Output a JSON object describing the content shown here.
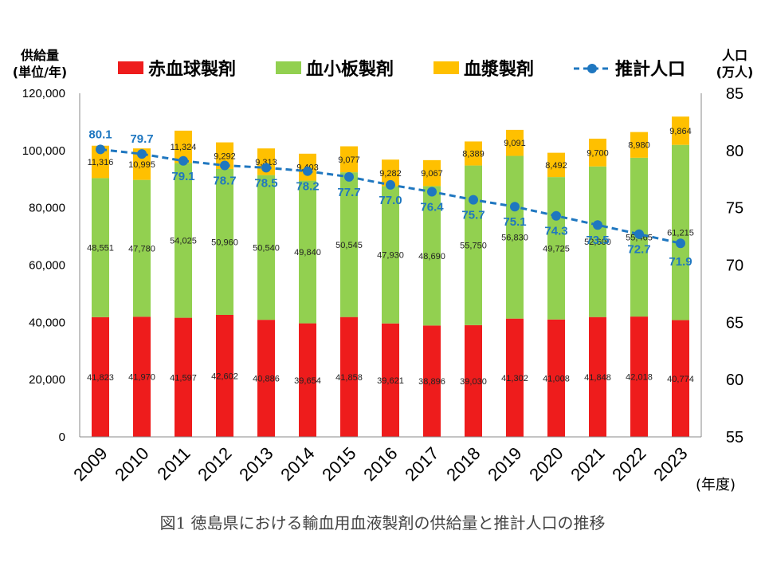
{
  "caption": "図1 徳島県における輸血用血液製剤の供給量と推計人口の推移",
  "chart_data": {
    "type": "bar",
    "stacked": true,
    "categories": [
      "2009",
      "2010",
      "2011",
      "2012",
      "2013",
      "2014",
      "2015",
      "2016",
      "2017",
      "2018",
      "2019",
      "2020",
      "2021",
      "2022",
      "2023"
    ],
    "series": [
      {
        "name": "赤血球製剤",
        "color": "#ee1c1c",
        "axis": "left",
        "values": [
          41823,
          41970,
          41597,
          42602,
          40886,
          39654,
          41858,
          39621,
          38896,
          39030,
          41302,
          41008,
          41848,
          42018,
          40774
        ],
        "labels": [
          "41,823",
          "41,970",
          "41,597",
          "42,602",
          "40,886",
          "39,654",
          "41,858",
          "39,621",
          "38,896",
          "39,030",
          "41,302",
          "41,008",
          "41,848",
          "42,018",
          "40,774"
        ]
      },
      {
        "name": "血小板製剤",
        "color": "#92d050",
        "axis": "left",
        "values": [
          48551,
          47780,
          54025,
          50960,
          50540,
          49840,
          50545,
          47930,
          48690,
          55750,
          56830,
          49725,
          52600,
          55465,
          61215
        ],
        "labels": [
          "48,551",
          "47,780",
          "54,025",
          "50,960",
          "50,540",
          "49,840",
          "50,545",
          "47,930",
          "48,690",
          "55,750",
          "56,830",
          "49,725",
          "52,600",
          "55,465",
          "61,215"
        ]
      },
      {
        "name": "血漿製剤",
        "color": "#ffc000",
        "axis": "left",
        "values": [
          11316,
          10995,
          11324,
          9292,
          9313,
          9403,
          9077,
          9282,
          9067,
          8389,
          9091,
          8492,
          9700,
          8980,
          9864
        ],
        "labels": [
          "11,316",
          "10,995",
          "11,324",
          "9,292",
          "9,313",
          "9,403",
          "9,077",
          "9,282",
          "9,067",
          "8,389",
          "9,091",
          "8,492",
          "9,700",
          "8,980",
          "9,864"
        ]
      },
      {
        "name": "推計人口",
        "type": "line",
        "style": "dashed",
        "color": "#1f77c0",
        "axis": "right",
        "values": [
          80.1,
          79.7,
          79.1,
          78.7,
          78.5,
          78.2,
          77.7,
          77.0,
          76.4,
          75.7,
          75.1,
          74.3,
          73.5,
          72.7,
          71.9
        ],
        "labels": [
          "80.1",
          "79.7",
          "79.1",
          "78.7",
          "78.5",
          "78.2",
          "77.7",
          "77.0",
          "76.4",
          "75.7",
          "75.1",
          "74.3",
          "73.5",
          "72.7",
          "71.9"
        ]
      }
    ],
    "left_axis": {
      "title_line1": "供給量",
      "title_line2": "(単位/年)",
      "ylim": [
        0,
        120000
      ],
      "ticks": [
        0,
        20000,
        40000,
        60000,
        80000,
        100000,
        120000
      ],
      "tick_labels": [
        "0",
        "20,000",
        "40,000",
        "60,000",
        "80,000",
        "100,000",
        "120,000"
      ]
    },
    "right_axis": {
      "title_line1": "人口",
      "title_line2": "(万人)",
      "ylim": [
        55,
        85
      ],
      "ticks": [
        55,
        60,
        65,
        70,
        75,
        80,
        85
      ],
      "tick_labels": [
        "55",
        "60",
        "65",
        "70",
        "75",
        "80",
        "85"
      ]
    },
    "xlabel": "(年度)",
    "legend_position": "top",
    "grid": false
  }
}
